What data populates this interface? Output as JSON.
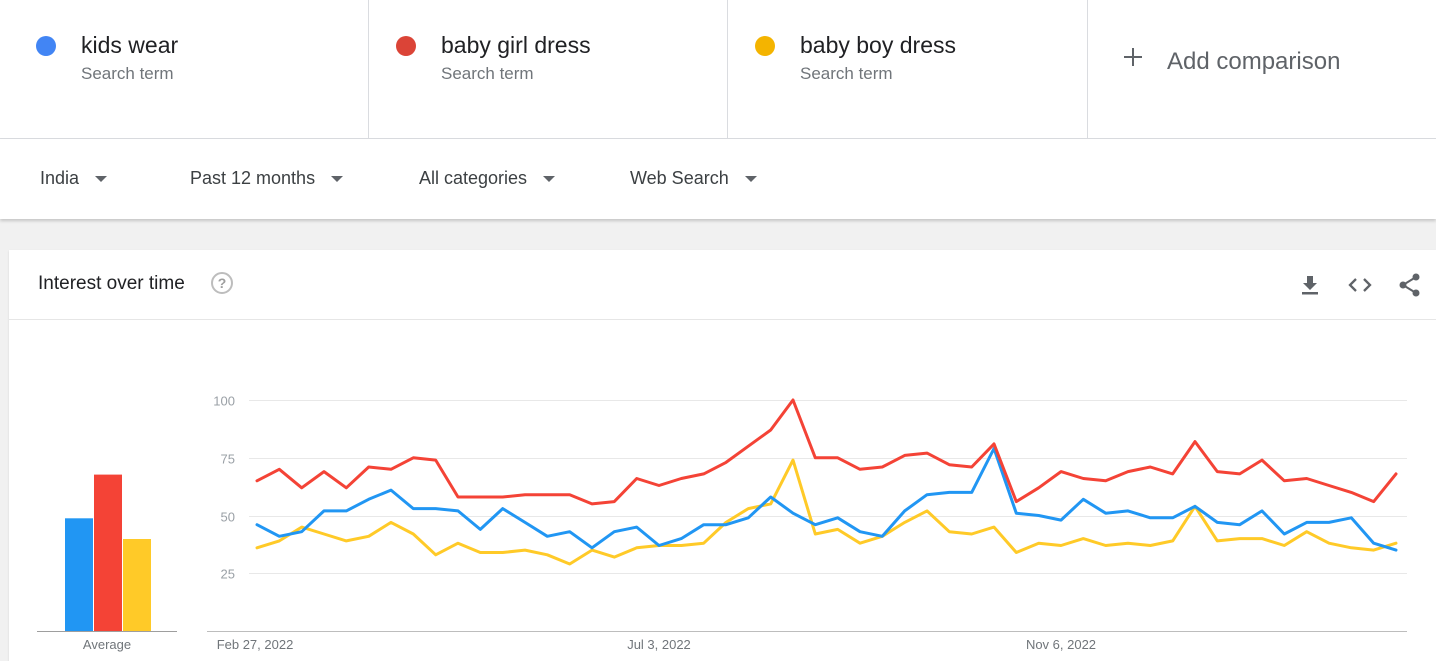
{
  "terms": [
    {
      "label": "kids wear",
      "sublabel": "Search term",
      "color": "#4285f4"
    },
    {
      "label": "baby girl dress",
      "sublabel": "Search term",
      "color": "#db4437"
    },
    {
      "label": "baby boy dress",
      "sublabel": "Search term",
      "color": "#f4b400"
    }
  ],
  "add_comparison": {
    "label": "Add comparison",
    "icon": "plus-icon"
  },
  "filters": {
    "region": "India",
    "time_range": "Past 12 months",
    "category": "All categories",
    "search_type": "Web Search"
  },
  "card": {
    "title": "Interest over time",
    "help_icon": "help-icon",
    "icons": [
      "download-icon",
      "embed-icon",
      "share-icon"
    ]
  },
  "chart_data": [
    {
      "type": "bar",
      "categories": [
        "kids wear",
        "baby girl dress",
        "baby boy dress"
      ],
      "values": [
        49,
        68,
        40
      ],
      "xlabel": "Average",
      "colors": [
        "#2196f3",
        "#f44336",
        "#ffca28"
      ],
      "ylim": [
        0,
        100
      ]
    },
    {
      "type": "line",
      "x_ticks": [
        "Feb 27, 2022",
        "Jul 3, 2022",
        "Nov 6, 2022"
      ],
      "y_ticks": [
        25,
        50,
        75,
        100
      ],
      "ylim": [
        0,
        100
      ],
      "grid": true,
      "series": [
        {
          "name": "kids wear",
          "color": "#2196f3",
          "values": [
            46,
            41,
            43,
            52,
            52,
            57,
            61,
            53,
            53,
            52,
            44,
            53,
            47,
            41,
            43,
            36,
            43,
            45,
            37,
            40,
            46,
            46,
            49,
            58,
            51,
            46,
            49,
            43,
            41,
            52,
            59,
            60,
            60,
            79,
            51,
            50,
            48,
            57,
            51,
            52,
            49,
            49,
            54,
            47,
            46,
            52,
            42,
            47,
            47,
            49,
            38,
            35
          ]
        },
        {
          "name": "baby girl dress",
          "color": "#f44336",
          "values": [
            65,
            70,
            62,
            69,
            62,
            71,
            70,
            75,
            74,
            58,
            58,
            58,
            59,
            59,
            59,
            55,
            56,
            66,
            63,
            66,
            68,
            73,
            80,
            87,
            100,
            75,
            75,
            70,
            71,
            76,
            77,
            72,
            71,
            81,
            56,
            62,
            69,
            66,
            65,
            69,
            71,
            68,
            82,
            69,
            68,
            74,
            65,
            66,
            63,
            60,
            56,
            68
          ]
        },
        {
          "name": "baby boy dress",
          "color": "#ffca28",
          "values": [
            36,
            39,
            45,
            42,
            39,
            41,
            47,
            42,
            33,
            38,
            34,
            34,
            35,
            33,
            29,
            35,
            32,
            36,
            37,
            37,
            38,
            47,
            53,
            55,
            74,
            42,
            44,
            38,
            41,
            47,
            52,
            43,
            42,
            45,
            34,
            38,
            37,
            40,
            37,
            38,
            37,
            39,
            54,
            39,
            40,
            40,
            37,
            43,
            38,
            36,
            35,
            38
          ]
        }
      ]
    }
  ]
}
